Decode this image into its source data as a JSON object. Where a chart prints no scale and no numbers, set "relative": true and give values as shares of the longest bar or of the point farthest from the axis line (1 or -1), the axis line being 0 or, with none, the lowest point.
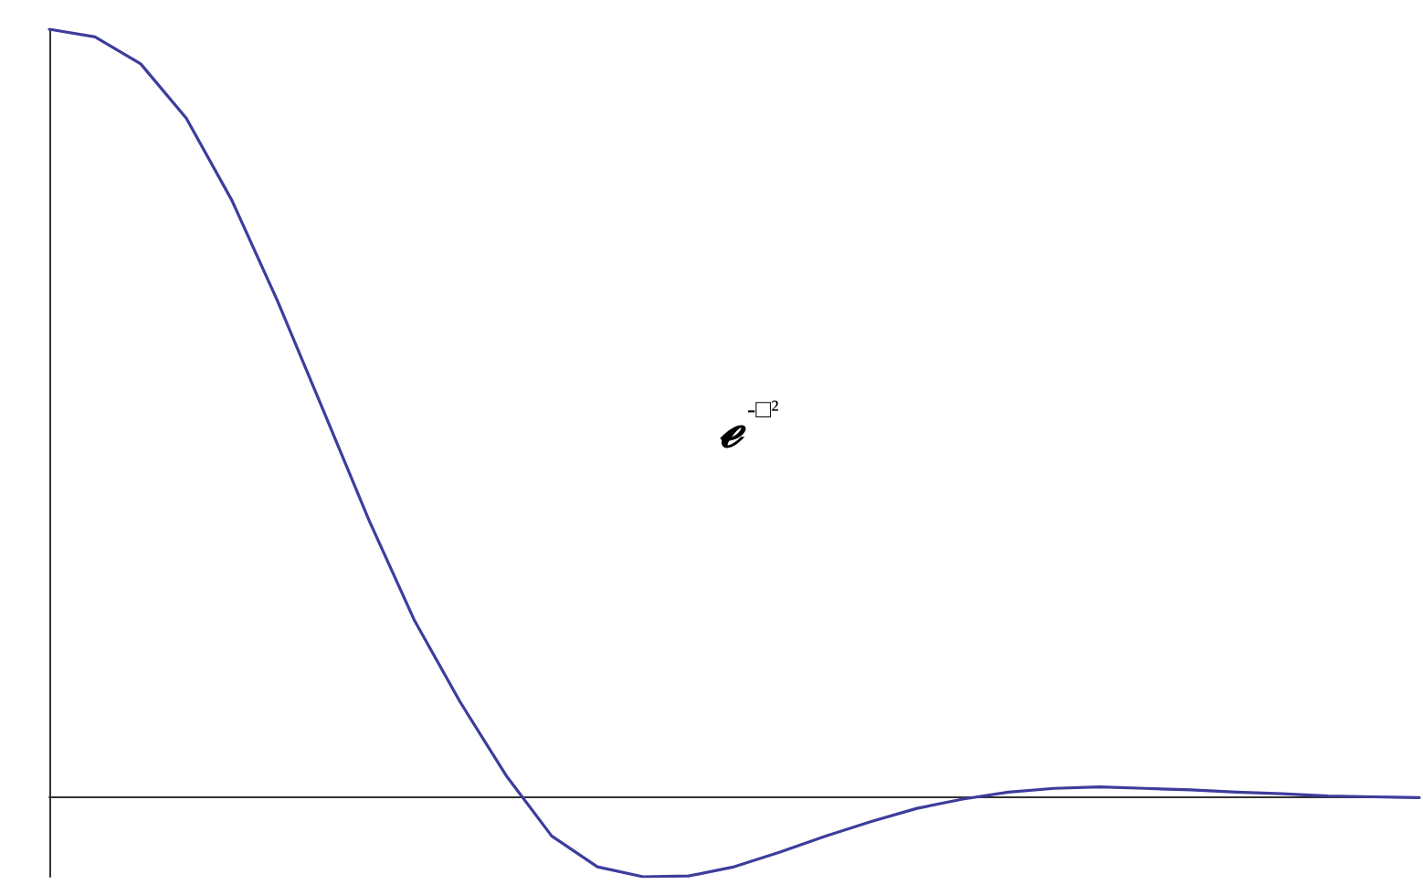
{
  "chart_data": {
    "type": "line",
    "relative": true,
    "marker": "none",
    "line_style": "solid",
    "categories": [
      null,
      null,
      null,
      null,
      null,
      null,
      null,
      null,
      null,
      null,
      null,
      null,
      null,
      null,
      null,
      null,
      null,
      null,
      null,
      null,
      null,
      null,
      null,
      null,
      null,
      null,
      null,
      null,
      null,
      null,
      null
    ],
    "series": [
      {
        "color": "#3d3d9c",
        "values": [
          1,
          0.99,
          0.955,
          0.884,
          0.777,
          0.646,
          0.504,
          0.361,
          0.23,
          0.124,
          0.029,
          -0.05,
          -0.09,
          -0.103,
          -0.102,
          -0.09,
          -0.071,
          -0.05,
          -0.031,
          -0.014,
          -0.002,
          0.007,
          0.012,
          0.014,
          0.012,
          0.01,
          0.007,
          0.005,
          0.002,
          0.001,
          0
        ]
      }
    ],
    "annotations": [
      "ℯ$^{-□²}$"
    ]
  }
}
